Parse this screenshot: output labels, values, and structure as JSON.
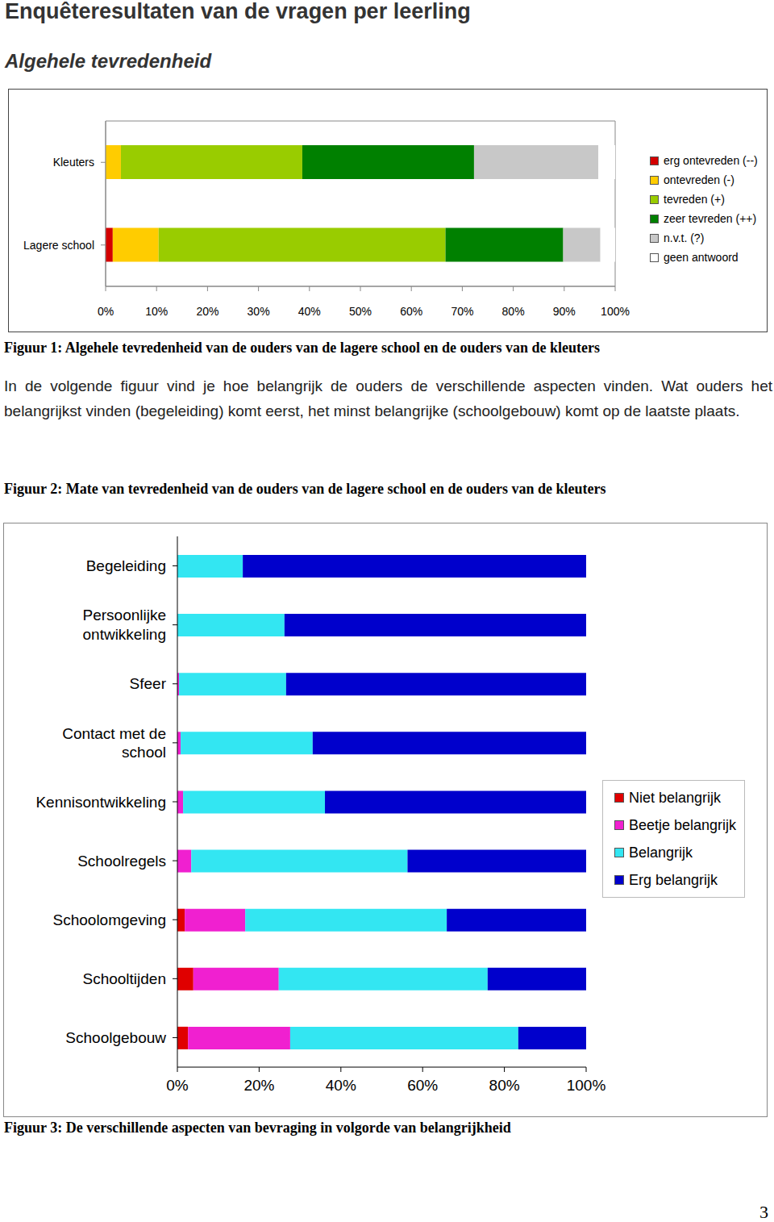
{
  "heading": "Enquêteresultaten van de vragen per leerling",
  "subheading": "Algehele tevredenheid",
  "paragraph": "In de volgende figuur vind je hoe belangrijk de ouders de verschillende aspecten vinden. Wat ouders het belangrijkst vinden (begeleiding) komt eerst, het minst belangrijke (schoolgebouw) komt op de laatste plaats.",
  "figure2_caption": "Figuur 2: Mate van tevredenheid van de ouders van de lagere school en de ouders van de kleuters",
  "page_number": 3,
  "chart_data": [
    {
      "type": "bar",
      "orientation": "horizontal",
      "stacked": true,
      "grid": false,
      "legend": "right",
      "caption": "Figuur 1: Algehele tevredenheid van de ouders van de lagere school en de ouders van de kleuters",
      "categories": [
        "Kleuters",
        "Lagere school"
      ],
      "series": [
        {
          "name": "erg ontevreden (--)",
          "color": "#d40000",
          "values": [
            0,
            1.4
          ]
        },
        {
          "name": "ontevreden (-)",
          "color": "#ffcc00",
          "values": [
            3,
            9
          ]
        },
        {
          "name": "tevreden (+)",
          "color": "#99cc00",
          "values": [
            35.6,
            56.3
          ]
        },
        {
          "name": "zeer tevreden (++)",
          "color": "#008000",
          "values": [
            33.7,
            23.1
          ]
        },
        {
          "name": "n.v.t. (?)",
          "color": "#c8c8c8",
          "values": [
            24.4,
            7.3
          ]
        },
        {
          "name": "geen antwoord",
          "color": "#ffffff",
          "values": [
            3.3,
            2.9
          ]
        }
      ],
      "xlim": [
        0,
        100
      ],
      "xticks": [
        {
          "value": 0,
          "label": "0%"
        },
        {
          "value": 10,
          "label": "10%"
        },
        {
          "value": 20,
          "label": "20%"
        },
        {
          "value": 30,
          "label": "30%"
        },
        {
          "value": 40,
          "label": "40%"
        },
        {
          "value": 50,
          "label": "50%"
        },
        {
          "value": 60,
          "label": "60%"
        },
        {
          "value": 70,
          "label": "70%"
        },
        {
          "value": 80,
          "label": "80%"
        },
        {
          "value": 90,
          "label": "90%"
        },
        {
          "value": 100,
          "label": "100%"
        }
      ]
    },
    {
      "type": "bar",
      "orientation": "horizontal",
      "stacked": true,
      "grid": false,
      "legend": "right",
      "caption": "Figuur 3: De verschillende aspecten van bevraging in volgorde van belangrijkheid",
      "categories": [
        "Begeleiding",
        "Persoonlijke ontwikkeling",
        "Sfeer",
        "Contact met de school",
        "Kennisontwikkeling",
        "Schoolregels",
        "Schoolomgeving",
        "Schooltijden",
        "Schoolgebouw"
      ],
      "series": [
        {
          "name": "Niet belangrijk",
          "color": "#e00000",
          "values": [
            0,
            0,
            0,
            0,
            0,
            0,
            1.8,
            3.9,
            2.6
          ]
        },
        {
          "name": "Beetje belangrijk",
          "color": "#f020d0",
          "values": [
            0,
            0,
            0.4,
            0.8,
            1.4,
            3.4,
            14.8,
            20.9,
            25
          ]
        },
        {
          "name": "Belangrijk",
          "color": "#33e6f2",
          "values": [
            16,
            26.2,
            26.2,
            32.3,
            34.7,
            52.9,
            49.3,
            51.1,
            55.8
          ]
        },
        {
          "name": "Erg belangrijk",
          "color": "#0000cc",
          "values": [
            84,
            73.8,
            73.4,
            66.9,
            63.9,
            43.7,
            34.1,
            24.1,
            16.6
          ]
        }
      ],
      "xlim": [
        0,
        100
      ],
      "xticks": [
        {
          "value": 0,
          "label": "0%"
        },
        {
          "value": 20,
          "label": "20%"
        },
        {
          "value": 40,
          "label": "40%"
        },
        {
          "value": 60,
          "label": "60%"
        },
        {
          "value": 80,
          "label": "80%"
        },
        {
          "value": 100,
          "label": "100%"
        }
      ]
    }
  ]
}
